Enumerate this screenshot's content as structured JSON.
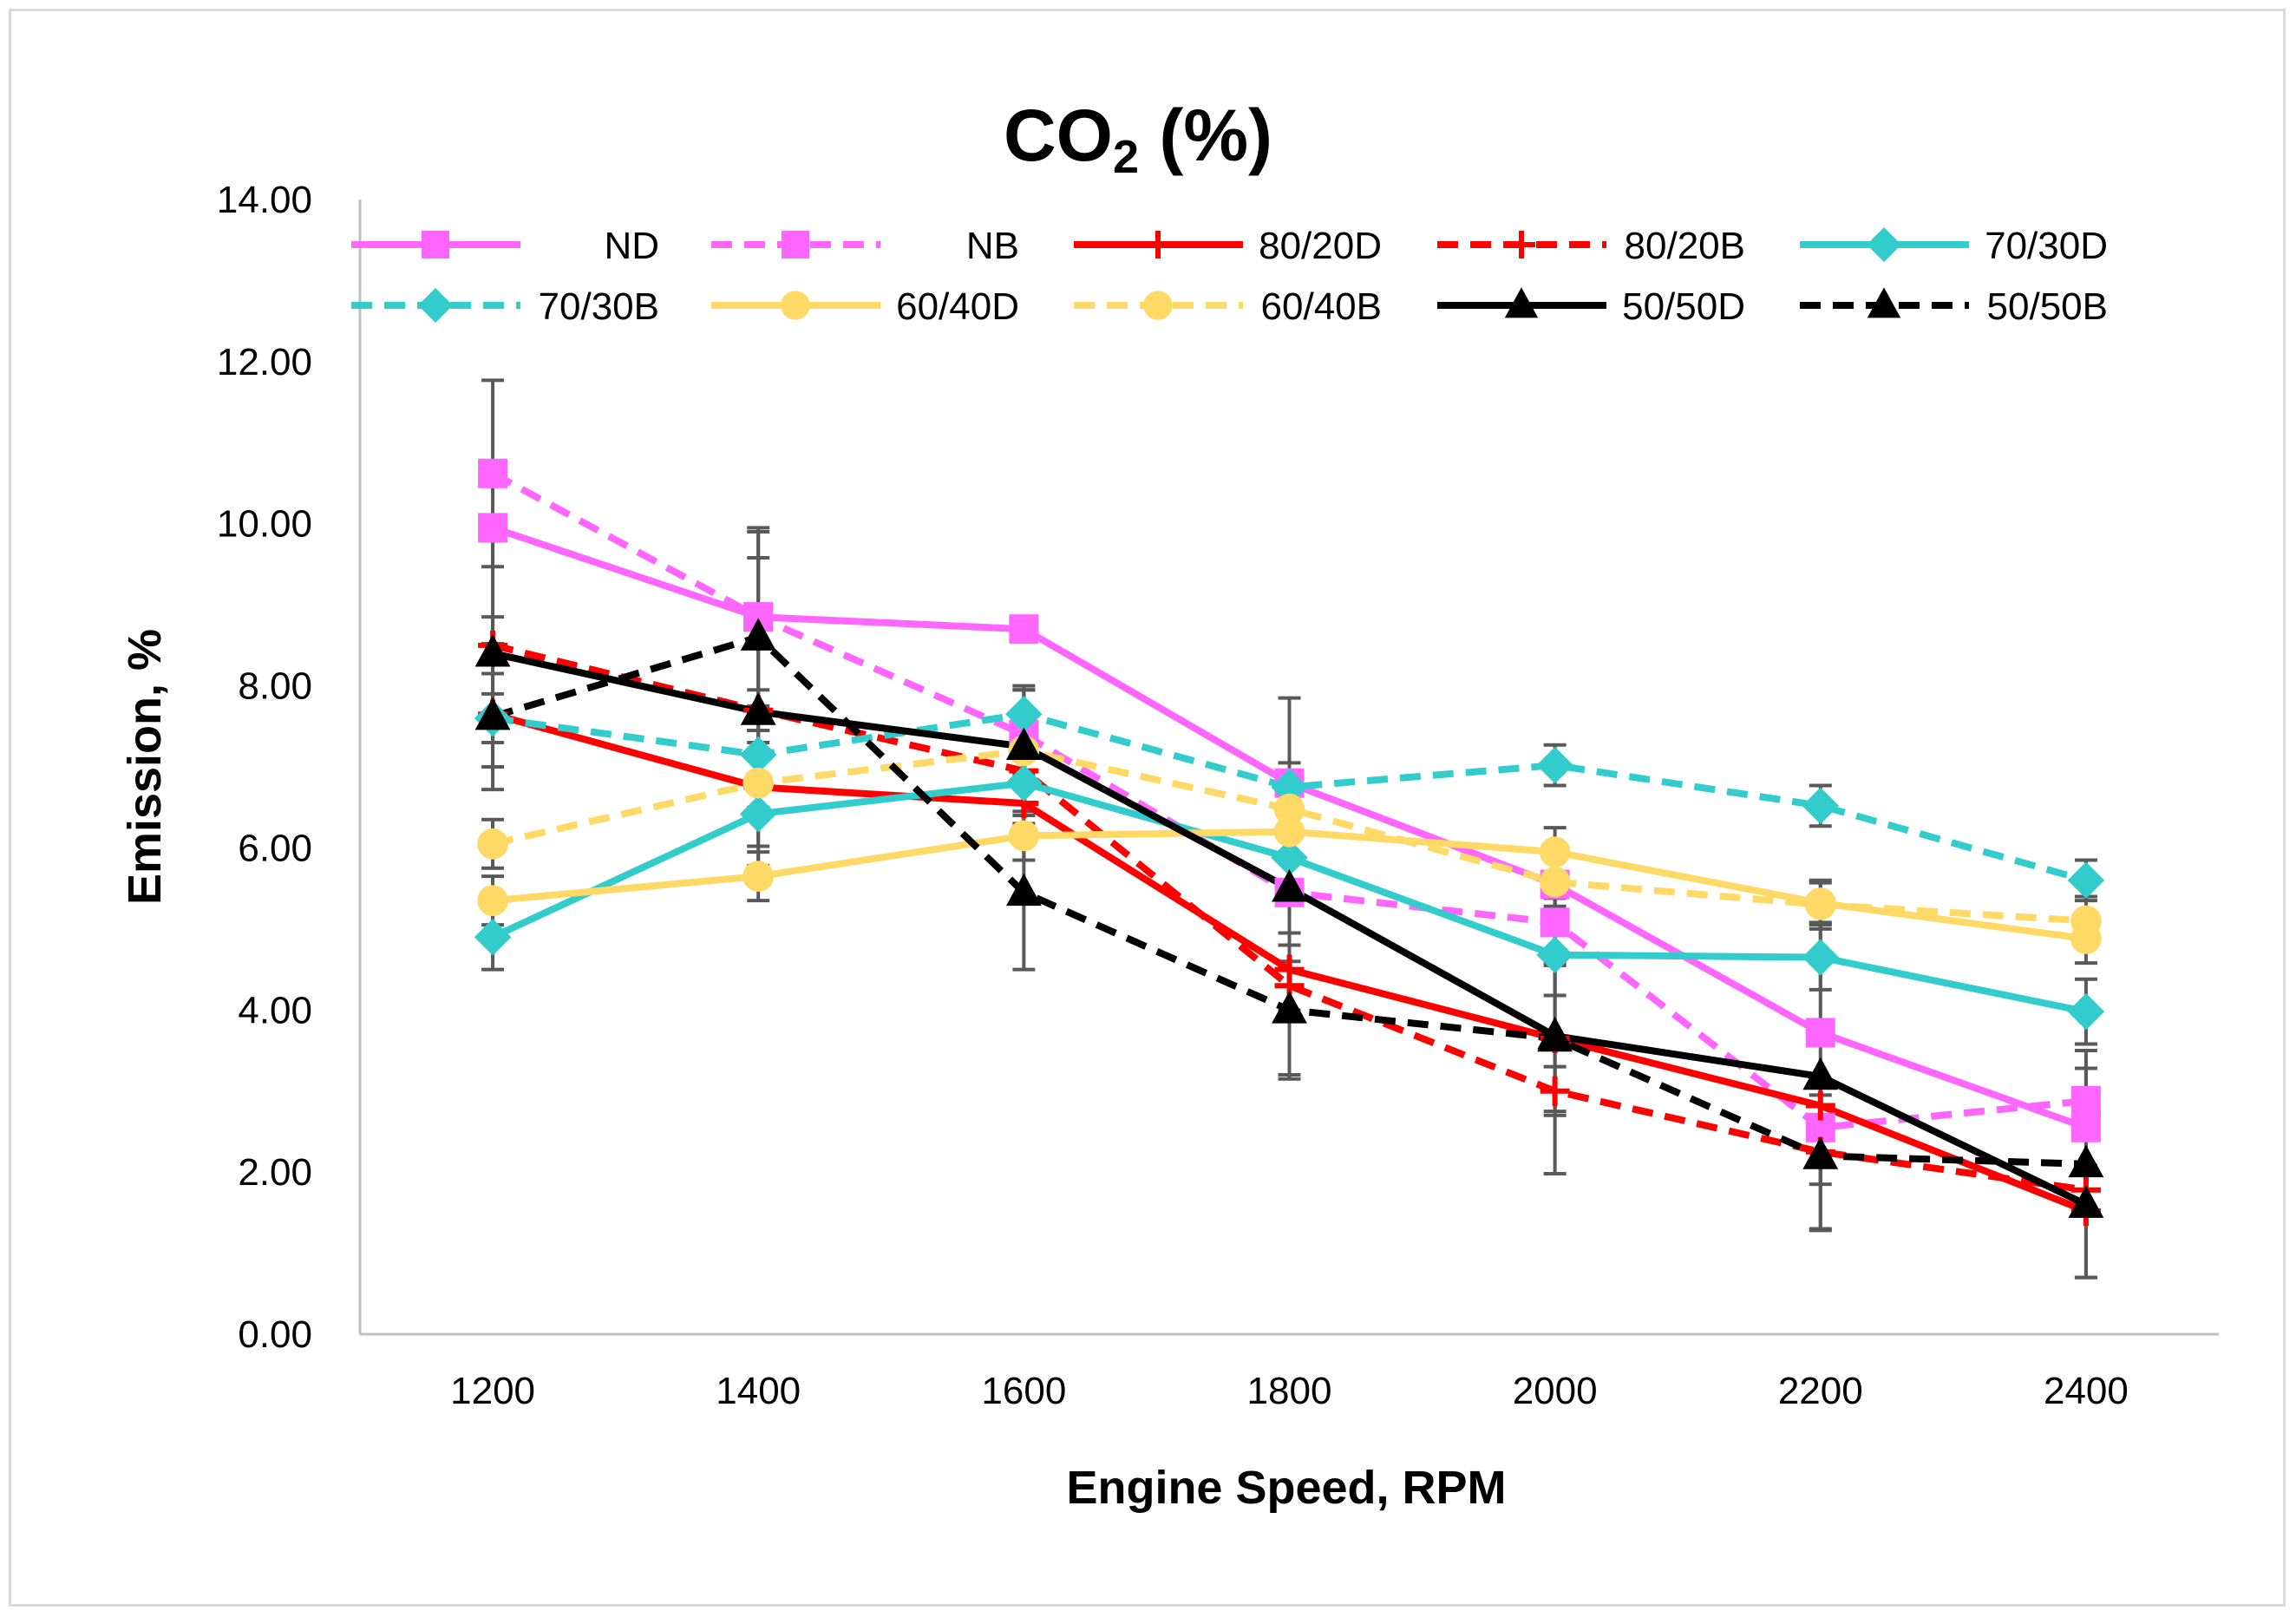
{
  "chart_data": {
    "type": "line",
    "title_main": "CO",
    "title_sub": "2",
    "title_rest": " (%)",
    "xlabel": "Engine Speed, RPM",
    "ylabel": "Emission, %",
    "x": [
      1200,
      1400,
      1600,
      1800,
      2000,
      2200,
      2400
    ],
    "x_tick_labels": [
      "1200",
      "1400",
      "1600",
      "1800",
      "2000",
      "2200",
      "2400"
    ],
    "ylim": [
      0,
      14
    ],
    "y_ticks": [
      0,
      2,
      4,
      6,
      8,
      10,
      12,
      14
    ],
    "y_tick_labels": [
      "0.00",
      "2.00",
      "4.00",
      "6.00",
      "8.00",
      "10.00",
      "12.00",
      "14.00"
    ],
    "grid": false,
    "legend_position": "top",
    "series": [
      {
        "name": "ND",
        "color": "#ff66ff",
        "dashed": false,
        "marker": "square",
        "values": [
          9.95,
          8.85,
          8.7,
          6.8,
          5.55,
          3.72,
          2.55
        ],
        "errors": [
          0,
          0,
          0,
          0,
          0,
          0,
          0
        ]
      },
      {
        "name": "NB",
        "color": "#ff66ff",
        "dashed": true,
        "marker": "square",
        "values": [
          10.62,
          8.85,
          7.4,
          5.45,
          5.08,
          2.55,
          2.88
        ],
        "errors": [
          1.15,
          1.1,
          0.6,
          0.5,
          0.5,
          0.4,
          0.4
        ]
      },
      {
        "name": "80/20D",
        "color": "#ff0000",
        "dashed": false,
        "marker": "plus",
        "values": [
          7.65,
          6.75,
          6.55,
          4.5,
          3.65,
          2.82,
          1.52
        ],
        "errors": [
          0,
          0,
          0,
          0,
          0,
          0,
          0
        ]
      },
      {
        "name": "80/20B",
        "color": "#ff0000",
        "dashed": true,
        "marker": "plus",
        "values": [
          8.5,
          7.7,
          6.95,
          4.3,
          3.0,
          2.25,
          1.78
        ],
        "errors": [
          0.35,
          0.25,
          0.4,
          0.3,
          0.3,
          0.4,
          0.3
        ]
      },
      {
        "name": "70/30D",
        "color": "#33cccc",
        "dashed": false,
        "marker": "diamond",
        "values": [
          4.9,
          6.42,
          6.8,
          5.88,
          4.68,
          4.65,
          3.98
        ],
        "errors": [
          0.4,
          0.4,
          0.5,
          0.4,
          0.5,
          0.4,
          0.4
        ]
      },
      {
        "name": "70/30B",
        "color": "#33cccc",
        "dashed": true,
        "marker": "diamond",
        "values": [
          7.6,
          7.15,
          7.65,
          6.75,
          7.02,
          6.52,
          5.6
        ],
        "errors": [
          0.3,
          0.3,
          0.3,
          0.3,
          0.25,
          0.25,
          0.25
        ]
      },
      {
        "name": "60/40D",
        "color": "#ffd966",
        "dashed": false,
        "marker": "circle",
        "values": [
          5.35,
          5.65,
          6.15,
          6.2,
          5.95,
          5.32,
          4.88
        ],
        "errors": [
          0.3,
          0.3,
          0.3,
          0.3,
          0.3,
          0.25,
          0.3
        ]
      },
      {
        "name": "60/40B",
        "color": "#ffd966",
        "dashed": true,
        "marker": "circle",
        "values": [
          6.05,
          6.8,
          7.2,
          6.48,
          5.58,
          5.3,
          5.1
        ],
        "errors": [
          0.3,
          0.3,
          0.3,
          0.3,
          0.3,
          0.3,
          0.3
        ]
      },
      {
        "name": "50/50D",
        "color": "#000000",
        "dashed": false,
        "marker": "triangle",
        "values": [
          8.4,
          7.68,
          7.25,
          5.5,
          3.68,
          3.18,
          1.6
        ],
        "errors": [
          1.4,
          1.9,
          0.7,
          2.35,
          1.7,
          1.9,
          0.9
        ]
      },
      {
        "name": "50/50B",
        "color": "#000000",
        "dashed": true,
        "marker": "triangle",
        "values": [
          7.62,
          8.6,
          5.45,
          4.0,
          3.65,
          2.2,
          2.1
        ],
        "errors": [
          0.9,
          1.3,
          0.95,
          0.8,
          0.9,
          0.9,
          1.4
        ]
      }
    ]
  }
}
